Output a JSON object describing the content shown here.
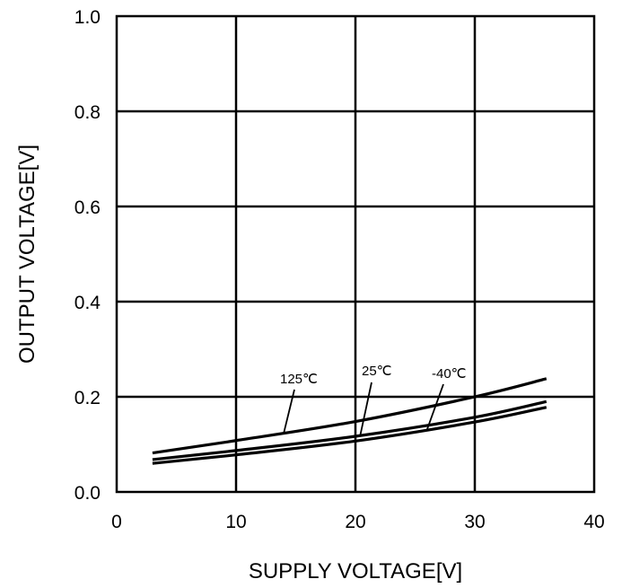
{
  "chart_data": {
    "type": "line",
    "title": "",
    "xlabel": "SUPPLY VOLTAGE[V]",
    "ylabel": "OUTPUT VOLTAGE[V]",
    "xlim": [
      0,
      40
    ],
    "ylim": [
      0,
      1.0
    ],
    "x_ticks": [
      "0",
      "10",
      "20",
      "30",
      "40"
    ],
    "y_ticks": [
      "0.0",
      "0.2",
      "0.4",
      "0.6",
      "0.8",
      "1.0"
    ],
    "grid": true,
    "series": [
      {
        "name": "125℃",
        "x": [
          3,
          10,
          20,
          30,
          36
        ],
        "values": [
          0.082,
          0.108,
          0.148,
          0.2,
          0.238
        ]
      },
      {
        "name": "25℃",
        "x": [
          3,
          10,
          20,
          30,
          36
        ],
        "values": [
          0.068,
          0.087,
          0.117,
          0.157,
          0.19
        ]
      },
      {
        "name": "-40℃",
        "x": [
          3,
          10,
          20,
          30,
          36
        ],
        "values": [
          0.06,
          0.078,
          0.107,
          0.147,
          0.178
        ]
      }
    ],
    "annotations": [
      {
        "text": "125℃",
        "series": 0
      },
      {
        "text": "25℃",
        "series": 1
      },
      {
        "text": "-40℃",
        "series": 2
      }
    ]
  }
}
